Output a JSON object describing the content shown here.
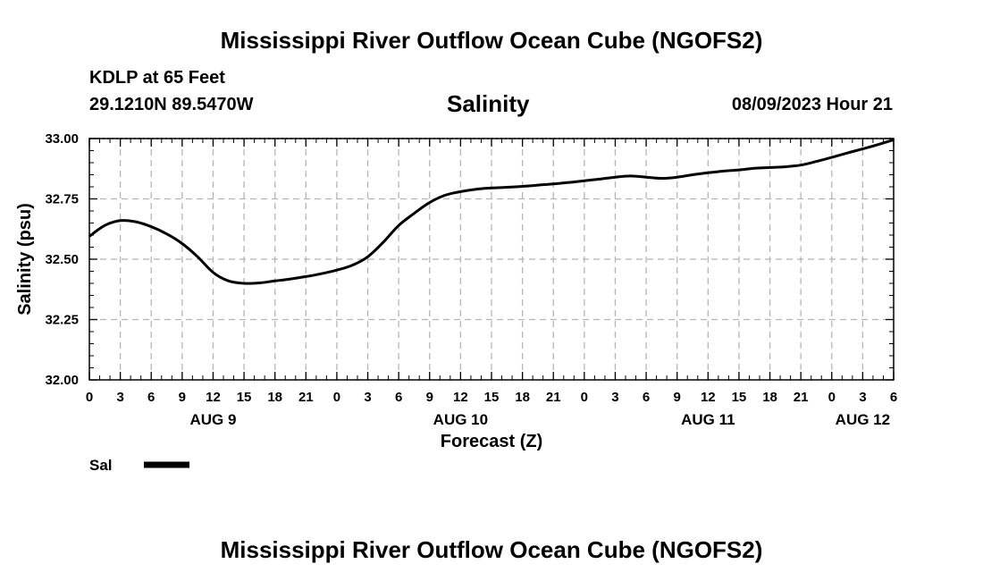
{
  "page_title": "Mississippi River Outflow Ocean Cube (NGOFS2)",
  "footer_title": "Mississippi River Outflow Ocean Cube (NGOFS2)",
  "station": {
    "name": "KDLP at 65 Feet",
    "coords": "29.1210N  89.5470W",
    "timestamp": "08/09/2023 Hour 21"
  },
  "chart_data": {
    "type": "line",
    "title": "Salinity",
    "xlabel": "Forecast (Z)",
    "ylabel": "Salinity (psu)",
    "ylim": [
      32.0,
      33.0
    ],
    "xlim": [
      0,
      78
    ],
    "grid": true,
    "y_ticks": [
      "32.00",
      "32.25",
      "32.50",
      "32.75",
      "33.00"
    ],
    "y_tick_values": [
      32.0,
      32.25,
      32.5,
      32.75,
      33.0
    ],
    "x_ticks": [
      "0",
      "3",
      "6",
      "9",
      "12",
      "15",
      "18",
      "21",
      "0",
      "3",
      "6",
      "9",
      "12",
      "15",
      "18",
      "21",
      "0",
      "3",
      "6",
      "9",
      "12",
      "15",
      "18",
      "21",
      "0",
      "3",
      "6"
    ],
    "day_labels": [
      {
        "label": "AUG 9",
        "hour": 12
      },
      {
        "label": "AUG 10",
        "hour": 36
      },
      {
        "label": "AUG 11",
        "hour": 60
      },
      {
        "label": "AUG 12",
        "hour": 75
      }
    ],
    "legend": [
      {
        "name": "Sal",
        "color": "#000000"
      }
    ],
    "series": [
      {
        "name": "Sal",
        "x": [
          0,
          1.5,
          3,
          4.5,
          6,
          7.5,
          9,
          10.5,
          12,
          13.5,
          15,
          16.5,
          18,
          19.5,
          21,
          22.5,
          24,
          25.5,
          27,
          28.5,
          30,
          31.5,
          33,
          34.5,
          36,
          37.5,
          39,
          40.5,
          42,
          43.5,
          45,
          46.5,
          48,
          49.5,
          51,
          52.5,
          54,
          55.5,
          57,
          58.5,
          60,
          61.5,
          63,
          64.5,
          66,
          67.5,
          69,
          70.5,
          72,
          73.5,
          75,
          76.5,
          78
        ],
        "values": [
          32.595,
          32.64,
          32.66,
          32.655,
          32.635,
          32.605,
          32.565,
          32.51,
          32.445,
          32.41,
          32.4,
          32.402,
          32.41,
          32.418,
          32.428,
          32.44,
          32.455,
          32.475,
          32.51,
          32.57,
          32.64,
          32.69,
          32.735,
          32.765,
          32.78,
          32.79,
          32.795,
          32.798,
          32.802,
          32.807,
          32.812,
          32.818,
          32.825,
          32.832,
          32.84,
          32.845,
          32.84,
          32.835,
          32.84,
          32.85,
          32.858,
          32.865,
          32.87,
          32.877,
          32.88,
          32.883,
          32.89,
          32.905,
          32.922,
          32.94,
          32.957,
          32.975,
          32.995
        ]
      }
    ]
  }
}
